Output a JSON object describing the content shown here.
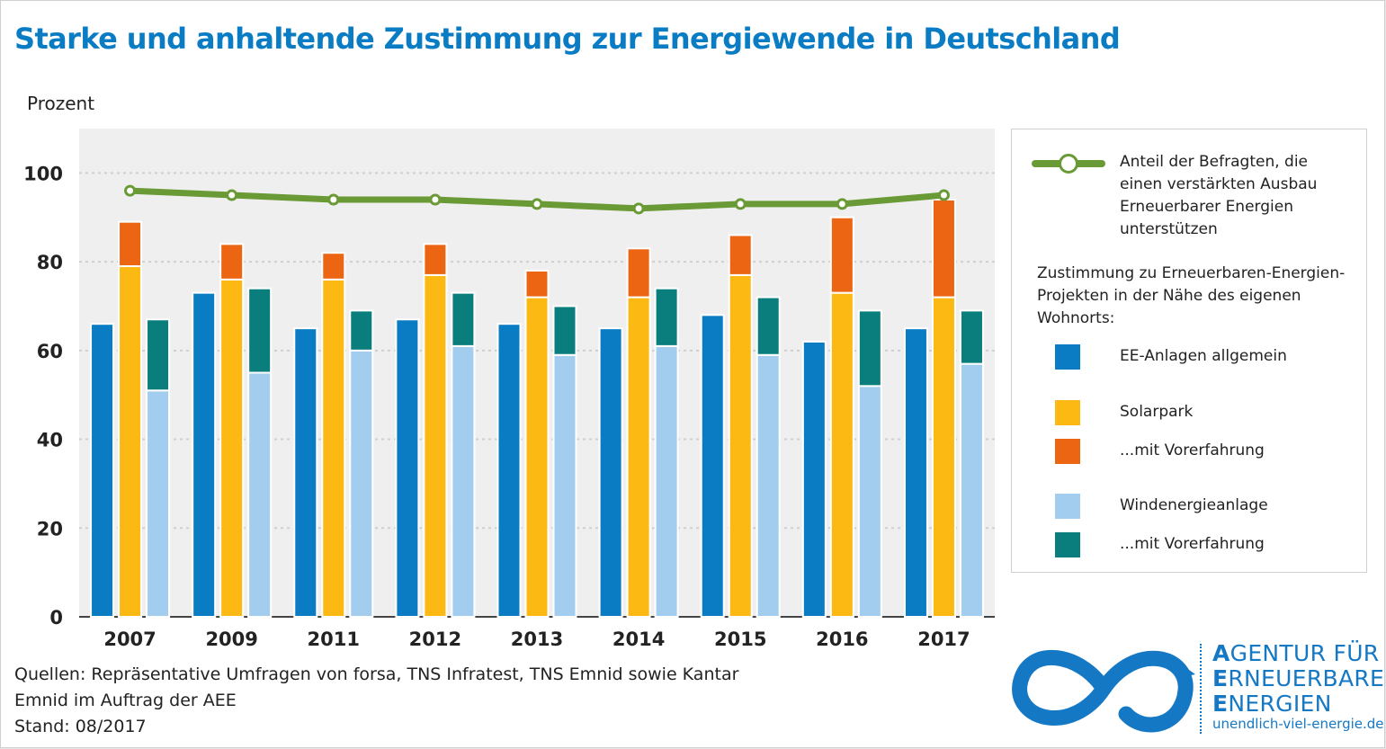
{
  "title": "Starke und anhaltende Zustimmung zur Energiewende in Deutschland",
  "colors": {
    "ee_allgemein": "#0a7cc4",
    "solarpark": "#fdb913",
    "solar_vorerfahrung": "#ec6513",
    "windenergie": "#a3cdee",
    "wind_vorerfahrung": "#0a7d7d",
    "line": "#6a9a36",
    "plot_bg": "#efefef"
  },
  "chart_data": {
    "type": "bar",
    "ylabel": "Prozent",
    "ylim": [
      0,
      110
    ],
    "yticks": [
      0,
      20,
      40,
      60,
      80,
      100
    ],
    "grid": true,
    "legend_position": "right",
    "categories": [
      "2007",
      "2009",
      "2011",
      "2012",
      "2013",
      "2014",
      "2015",
      "2016",
      "2017"
    ],
    "series": [
      {
        "name": "EE-Anlagen allgemein",
        "values": [
          66,
          73,
          65,
          67,
          66,
          65,
          68,
          62,
          65
        ]
      },
      {
        "name": "Solarpark",
        "values": [
          79,
          76,
          76,
          77,
          72,
          72,
          77,
          73,
          72
        ]
      },
      {
        "name": "...mit Vorerfahrung",
        "values": [
          89,
          84,
          82,
          84,
          78,
          83,
          86,
          90,
          94
        ]
      },
      {
        "name": "Windenergieanlage",
        "values": [
          51,
          55,
          60,
          61,
          59,
          61,
          59,
          52,
          57
        ]
      },
      {
        "name": "...mit Vorerfahrung",
        "values": [
          67,
          74,
          69,
          73,
          70,
          74,
          72,
          69,
          69
        ]
      }
    ],
    "line_series": {
      "name": "Anteil der Befragten, die einen verstärkten Ausbau Erneuerbarer Energien unterstützen",
      "values": [
        96,
        95,
        94,
        94,
        93,
        92,
        93,
        93,
        95
      ]
    }
  },
  "legend": {
    "line_label": "Anteil der Befragten, die einen verstärkten Ausbau Erneuerbarer Energien unterstützen",
    "group_heading": "Zustimmung zu Erneuerbaren-Energien-Projekten in der Nähe des eigenen Wohnorts:",
    "items": [
      "EE-Anlagen allgemein",
      "Solarpark",
      "...mit Vorerfahrung",
      "Windenergieanlage",
      "...mit Vorerfahrung"
    ]
  },
  "sources": {
    "line1": "Quellen: Repräsentative Umfragen von forsa, TNS Infratest, TNS Emnid sowie Kantar",
    "line2": "Emnid im Auftrag der AEE",
    "line3": "Stand: 08/2017"
  },
  "logo": {
    "line1_first": "A",
    "line1_rest": "GENTUR FÜR",
    "line2_first": "E",
    "line2_rest": "RNEUERBARE",
    "line3_first": "E",
    "line3_rest": "NERGIEN",
    "url": "unendlich-viel-energie.de"
  }
}
